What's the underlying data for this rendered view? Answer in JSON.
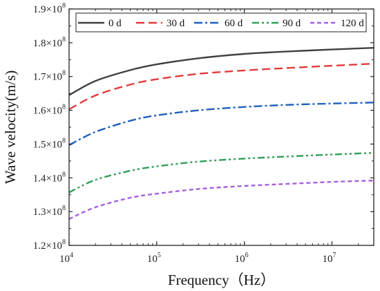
{
  "chart_data": {
    "type": "line",
    "xlabel": "Frequency（Hz）",
    "ylabel": "Wave velocity(m/s)",
    "xscale": "log",
    "xlim": [
      10000,
      30000000
    ],
    "ylim": [
      120000000,
      190000000
    ],
    "x_ticks": [
      {
        "value": 10000,
        "base": "10",
        "exp": "4"
      },
      {
        "value": 100000,
        "base": "10",
        "exp": "5"
      },
      {
        "value": 1000000,
        "base": "10",
        "exp": "6"
      },
      {
        "value": 10000000,
        "base": "10",
        "exp": "7"
      }
    ],
    "y_ticks": [
      {
        "value": 120000000,
        "mant": "1.2×10",
        "exp": "8"
      },
      {
        "value": 130000000,
        "mant": "1.3×10",
        "exp": "8"
      },
      {
        "value": 140000000,
        "mant": "1.4×10",
        "exp": "8"
      },
      {
        "value": 150000000,
        "mant": "1.5×10",
        "exp": "8"
      },
      {
        "value": 160000000,
        "mant": "1.6×10",
        "exp": "8"
      },
      {
        "value": 170000000,
        "mant": "1.7×10",
        "exp": "8"
      },
      {
        "value": 180000000,
        "mant": "1.8×10",
        "exp": "8"
      },
      {
        "value": 190000000,
        "mant": "1.9×10",
        "exp": "8"
      }
    ],
    "legend_position": "top",
    "series": [
      {
        "name": "0 d",
        "color": "#404040",
        "dash": "solid",
        "x": [
          10000,
          20000,
          50000,
          100000,
          300000,
          1000000,
          3000000,
          10000000,
          30000000
        ],
        "values": [
          164500000,
          168700000,
          171900000,
          173600000,
          175400000,
          176700000,
          177400000,
          178000000,
          178500000
        ]
      },
      {
        "name": "30 d",
        "color": "#e03a3a",
        "dash": "dash",
        "x": [
          10000,
          20000,
          50000,
          100000,
          300000,
          1000000,
          3000000,
          10000000,
          30000000
        ],
        "values": [
          160300000,
          164400000,
          167600000,
          169200000,
          170800000,
          171800000,
          172500000,
          173200000,
          173800000
        ]
      },
      {
        "name": "60 d",
        "color": "#1f5fbf",
        "dash": "dashdot",
        "x": [
          10000,
          20000,
          50000,
          100000,
          300000,
          1000000,
          3000000,
          10000000,
          30000000
        ],
        "values": [
          149700000,
          153600000,
          156900000,
          158500000,
          160000000,
          161000000,
          161600000,
          162000000,
          162300000
        ]
      },
      {
        "name": "90 d",
        "color": "#2e9e5a",
        "dash": "dashdotdot",
        "x": [
          10000,
          20000,
          50000,
          100000,
          300000,
          1000000,
          3000000,
          10000000,
          30000000
        ],
        "values": [
          135700000,
          139400000,
          142100000,
          143400000,
          144800000,
          145700000,
          146300000,
          146900000,
          147400000
        ]
      },
      {
        "name": "120 d",
        "color": "#a560e0",
        "dash": "shortdash",
        "x": [
          10000,
          20000,
          50000,
          100000,
          300000,
          1000000,
          3000000,
          10000000,
          30000000
        ],
        "values": [
          127800000,
          131300000,
          134100000,
          135300000,
          136700000,
          137600000,
          138200000,
          138800000,
          139200000
        ]
      }
    ]
  }
}
